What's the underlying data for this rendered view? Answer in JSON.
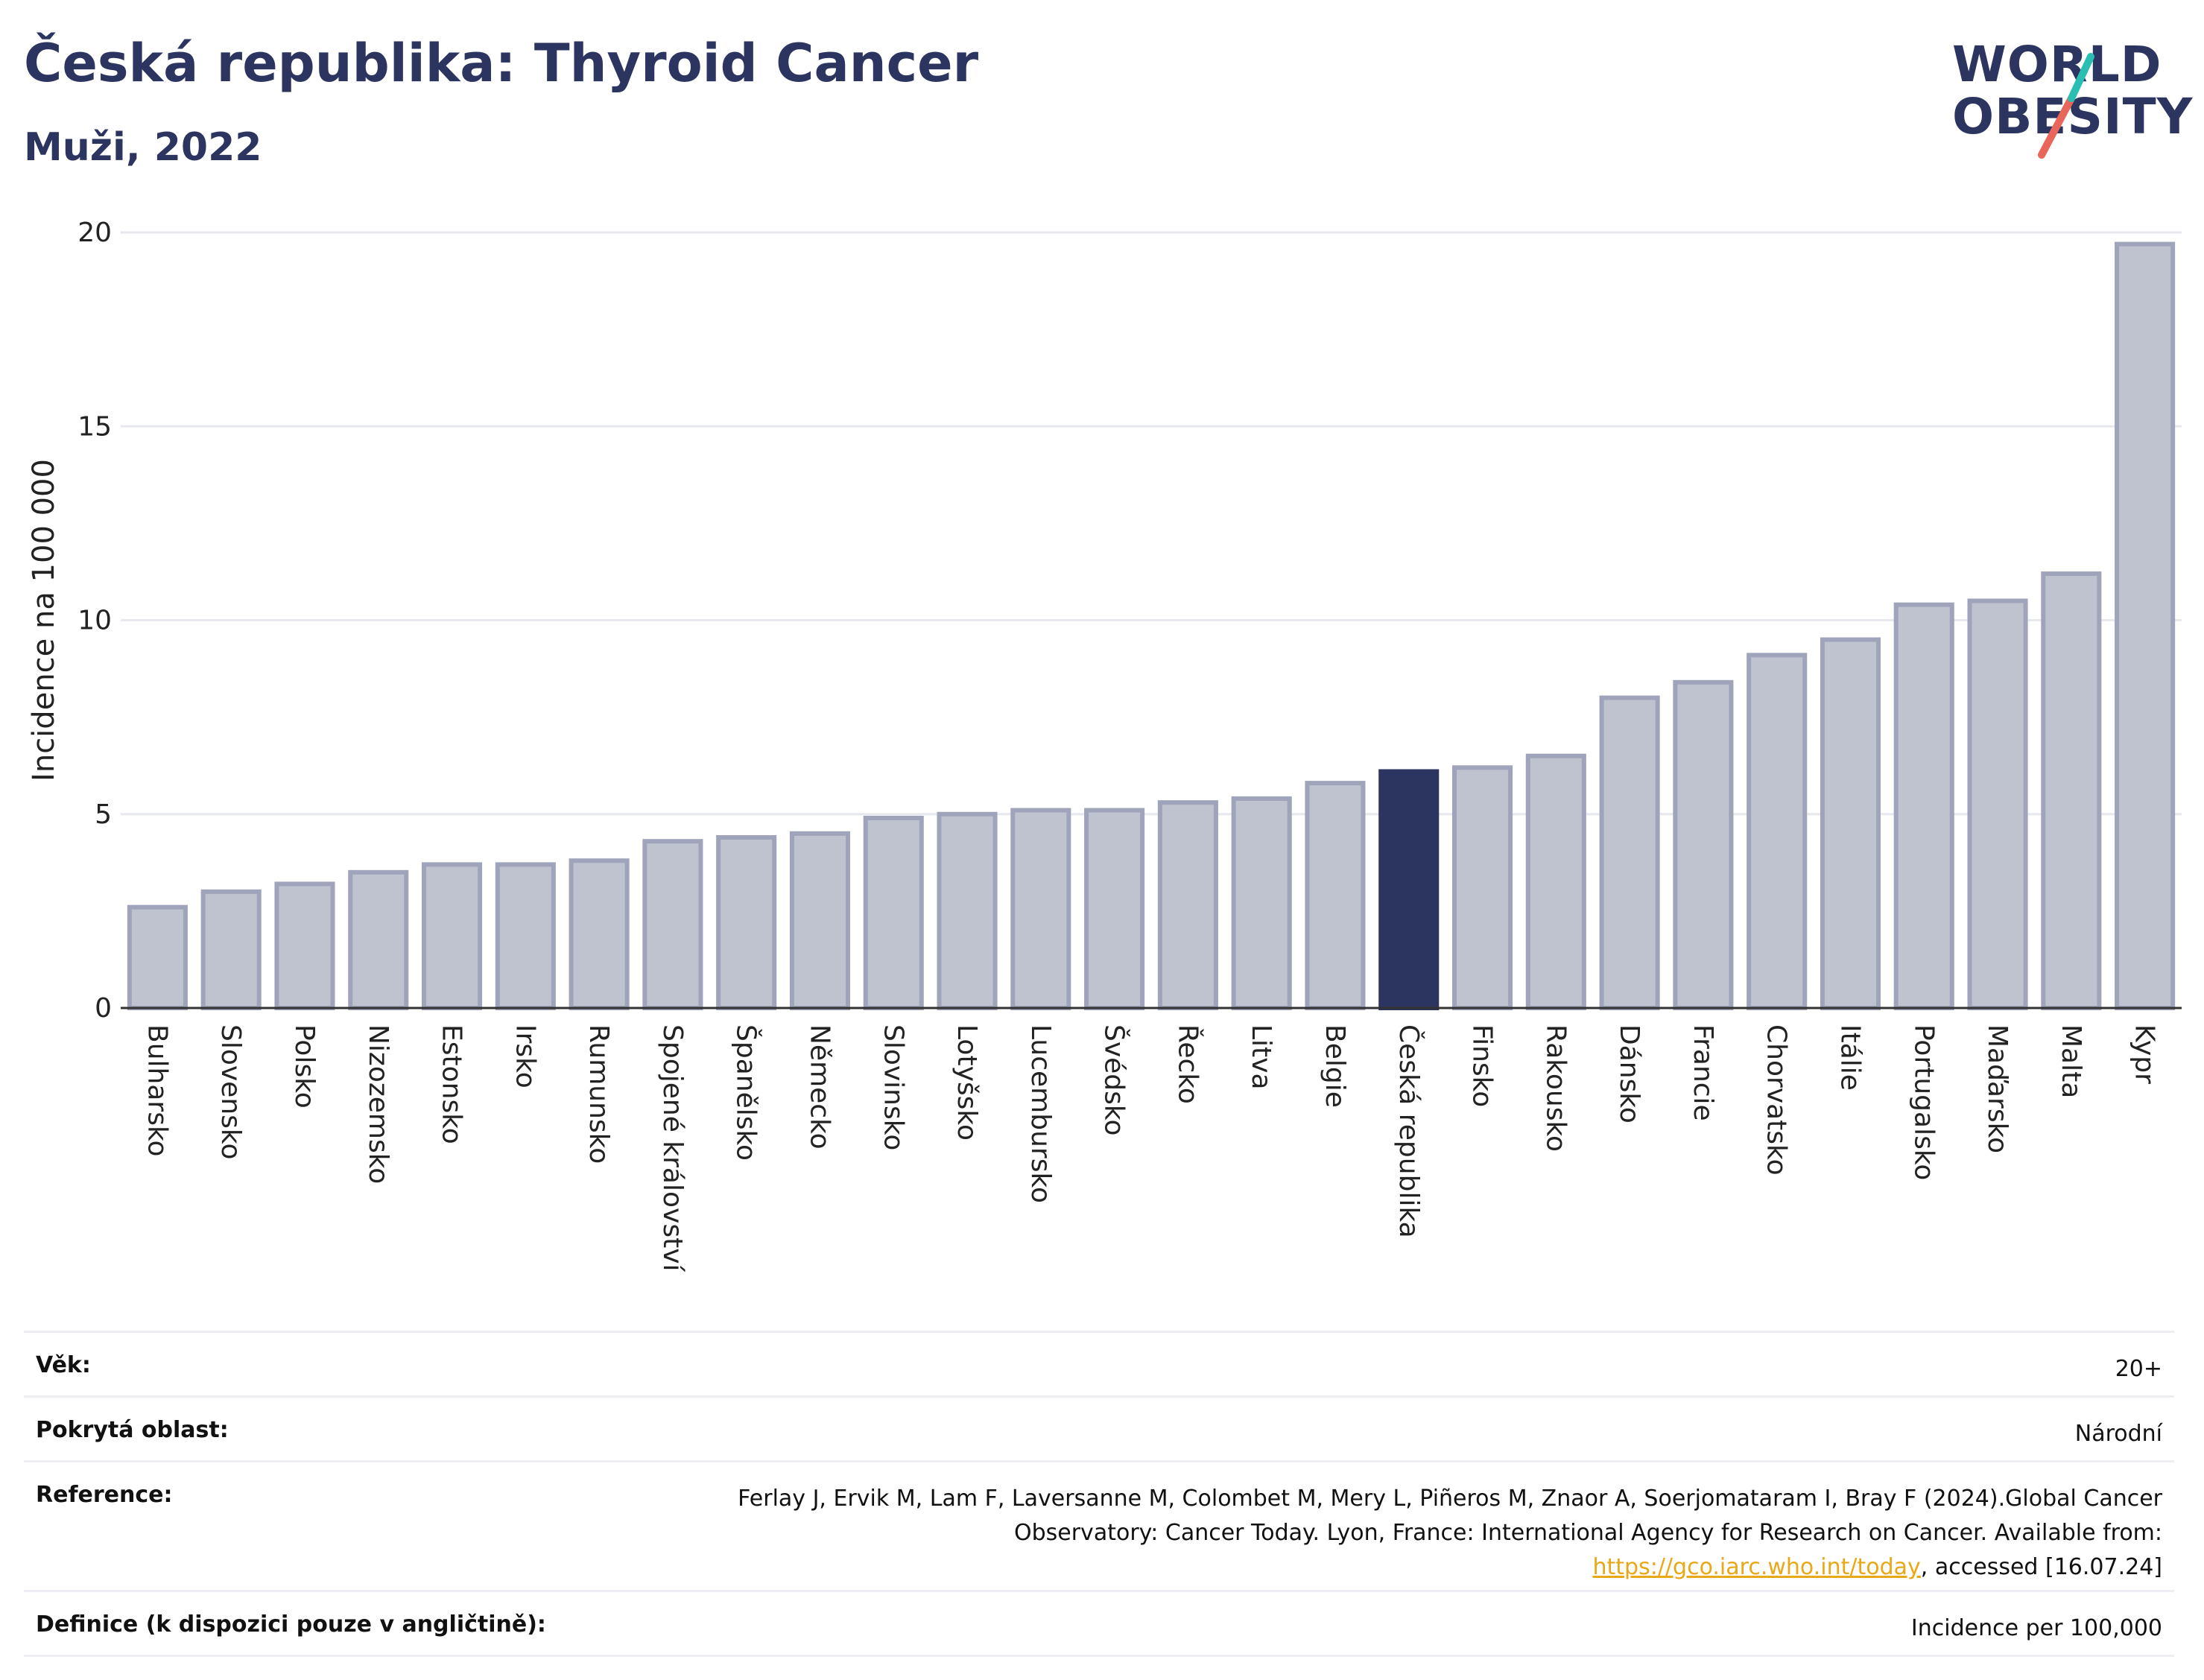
{
  "header": {
    "title": "Česká republika: Thyroid Cancer",
    "subtitle": "Muži, 2022"
  },
  "logo": {
    "line1": "WORLD",
    "line2": "OBESITY",
    "accent_colors": [
      "#2bbfb3",
      "#e8665a"
    ]
  },
  "colors": {
    "bar": "#bfc2cf",
    "bar_edge": "#9fa4ba",
    "highlight": "#2b3560",
    "grid": "#e6e8ee"
  },
  "chart_data": {
    "type": "bar",
    "title": "Česká republika: Thyroid Cancer",
    "subtitle": "Muži, 2022",
    "ylabel": "Incidence na 100 000",
    "xlabel": "",
    "ylim": [
      0,
      20
    ],
    "yticks": [
      0,
      5,
      10,
      15,
      20
    ],
    "grid": true,
    "highlight": "Česká republika",
    "categories": [
      "Bulharsko",
      "Slovensko",
      "Polsko",
      "Nizozemsko",
      "Estonsko",
      "Irsko",
      "Rumunsko",
      "Spojené království",
      "Španělsko",
      "Německo",
      "Slovinsko",
      "Lotyšsko",
      "Lucembursko",
      "Švédsko",
      "Řecko",
      "Litva",
      "Belgie",
      "Česká republika",
      "Finsko",
      "Rakousko",
      "Dánsko",
      "Francie",
      "Chorvatsko",
      "Itálie",
      "Portugalsko",
      "Maďarsko",
      "Malta",
      "Kypr"
    ],
    "values": [
      2.6,
      3.0,
      3.2,
      3.5,
      3.7,
      3.7,
      3.8,
      4.3,
      4.4,
      4.5,
      4.9,
      5.0,
      5.1,
      5.1,
      5.3,
      5.4,
      5.8,
      6.1,
      6.2,
      6.5,
      8.0,
      8.4,
      9.1,
      9.5,
      10.4,
      10.5,
      11.2,
      19.7
    ]
  },
  "meta": {
    "age_label": "Věk:",
    "age_value": "20+",
    "coverage_label": "Pokrytá oblast:",
    "coverage_value": "Národní",
    "reference_label": "Reference:",
    "reference_text_1": "Ferlay J, Ervik M, Lam F, Laversanne M, Colombet M, Mery L, Piñeros M, Znaor A, Soerjomataram I, Bray F (2024).Global Cancer Observatory: Cancer Today. Lyon, France: International Agency for Research on Cancer. Available from: ",
    "reference_link": "https://gco.iarc.who.int/today",
    "reference_text_2": ", accessed [16.07.24]",
    "definition_label": "Definice (k dispozici pouze v angličtině):",
    "definition_value": "Incidence per 100,000"
  }
}
